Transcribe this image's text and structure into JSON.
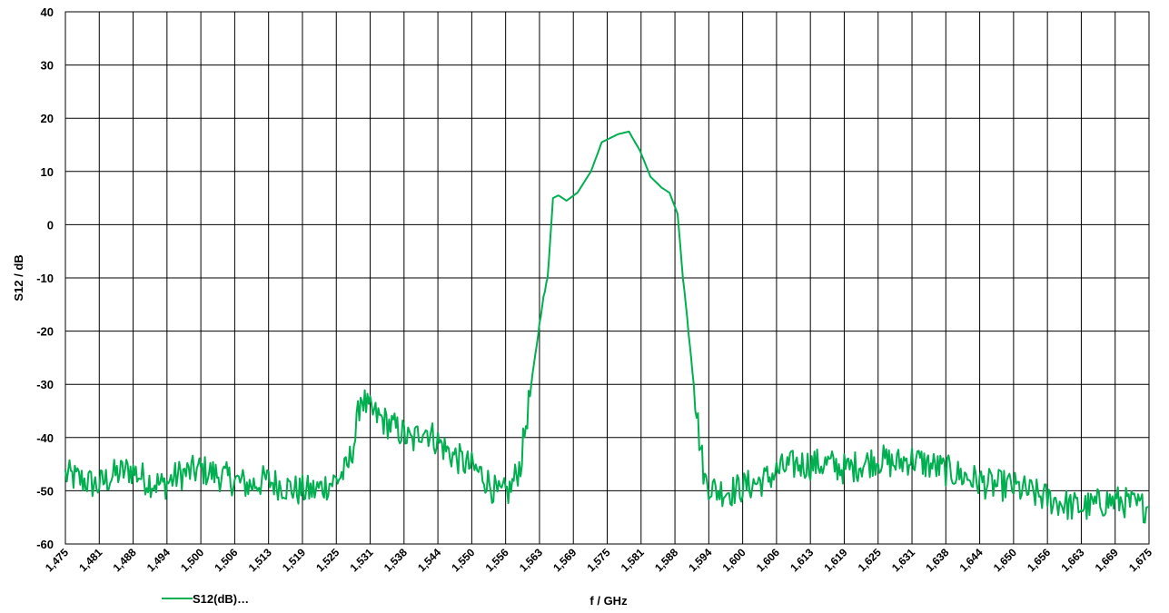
{
  "chart_data": {
    "type": "line",
    "xlabel": "f / GHz",
    "ylabel": "S12 / dB",
    "ylim": [
      -60,
      40
    ],
    "y_ticks": [
      "40",
      "30",
      "20",
      "10",
      "0",
      "-10",
      "-20",
      "-30",
      "-40",
      "-50",
      "-60"
    ],
    "x_tick_labels": [
      "1,475",
      "1,481",
      "1,488",
      "1,494",
      "1,500",
      "1,506",
      "1,513",
      "1,519",
      "1,525",
      "1,531",
      "1,538",
      "1,544",
      "1,550",
      "1,556",
      "1,563",
      "1,569",
      "1,575",
      "1,581",
      "1,588",
      "1,594",
      "1,600",
      "1,606",
      "1,613",
      "1,619",
      "1,625",
      "1,631",
      "1,638",
      "1,644",
      "1,650",
      "1,656",
      "1,663",
      "1,669",
      "1,675"
    ],
    "grid": true,
    "legend_position": "bottom-left",
    "series": [
      {
        "name": "S12(dB)…",
        "color": "#00b050",
        "points": [
          [
            1.475,
            -47
          ],
          [
            1.478,
            -48
          ],
          [
            1.481,
            -49
          ],
          [
            1.484,
            -47
          ],
          [
            1.487,
            -46
          ],
          [
            1.49,
            -48
          ],
          [
            1.493,
            -49
          ],
          [
            1.496,
            -47
          ],
          [
            1.5,
            -46
          ],
          [
            1.503,
            -47
          ],
          [
            1.506,
            -48
          ],
          [
            1.509,
            -49
          ],
          [
            1.512,
            -48
          ],
          [
            1.515,
            -49
          ],
          [
            1.518,
            -50
          ],
          [
            1.521,
            -50
          ],
          [
            1.523,
            -49
          ],
          [
            1.525,
            -48
          ],
          [
            1.527,
            -46
          ],
          [
            1.5285,
            -40
          ],
          [
            1.5295,
            -32
          ],
          [
            1.531,
            -35
          ],
          [
            1.534,
            -37
          ],
          [
            1.537,
            -39
          ],
          [
            1.539,
            -41
          ],
          [
            1.541,
            -38
          ],
          [
            1.543,
            -40
          ],
          [
            1.546,
            -43
          ],
          [
            1.549,
            -45
          ],
          [
            1.552,
            -47
          ],
          [
            1.555,
            -51
          ],
          [
            1.557,
            -50
          ],
          [
            1.559,
            -45
          ],
          [
            1.561,
            -30
          ],
          [
            1.563,
            -15
          ],
          [
            1.564,
            -10
          ],
          [
            1.565,
            5
          ],
          [
            1.566,
            5.5
          ],
          [
            1.5675,
            4.5
          ],
          [
            1.5695,
            6
          ],
          [
            1.572,
            10
          ],
          [
            1.574,
            15.5
          ],
          [
            1.577,
            17
          ],
          [
            1.579,
            17.5
          ],
          [
            1.581,
            14
          ],
          [
            1.583,
            9
          ],
          [
            1.585,
            7
          ],
          [
            1.5865,
            6
          ],
          [
            1.588,
            2
          ],
          [
            1.589,
            -10
          ],
          [
            1.5905,
            -25
          ],
          [
            1.592,
            -40
          ],
          [
            1.593,
            -48
          ],
          [
            1.595,
            -50
          ],
          [
            1.598,
            -50
          ],
          [
            1.601,
            -49
          ],
          [
            1.604,
            -48
          ],
          [
            1.607,
            -46
          ],
          [
            1.61,
            -45
          ],
          [
            1.613,
            -45
          ],
          [
            1.616,
            -45
          ],
          [
            1.619,
            -46
          ],
          [
            1.622,
            -45
          ],
          [
            1.625,
            -44
          ],
          [
            1.628,
            -45
          ],
          [
            1.631,
            -44
          ],
          [
            1.634,
            -45
          ],
          [
            1.637,
            -46
          ],
          [
            1.64,
            -47
          ],
          [
            1.643,
            -48
          ],
          [
            1.646,
            -49
          ],
          [
            1.649,
            -49
          ],
          [
            1.652,
            -50
          ],
          [
            1.655,
            -51
          ],
          [
            1.658,
            -52
          ],
          [
            1.661,
            -53
          ],
          [
            1.664,
            -53
          ],
          [
            1.667,
            -52
          ],
          [
            1.67,
            -52
          ],
          [
            1.673,
            -53
          ],
          [
            1.675,
            -53
          ]
        ]
      }
    ]
  }
}
